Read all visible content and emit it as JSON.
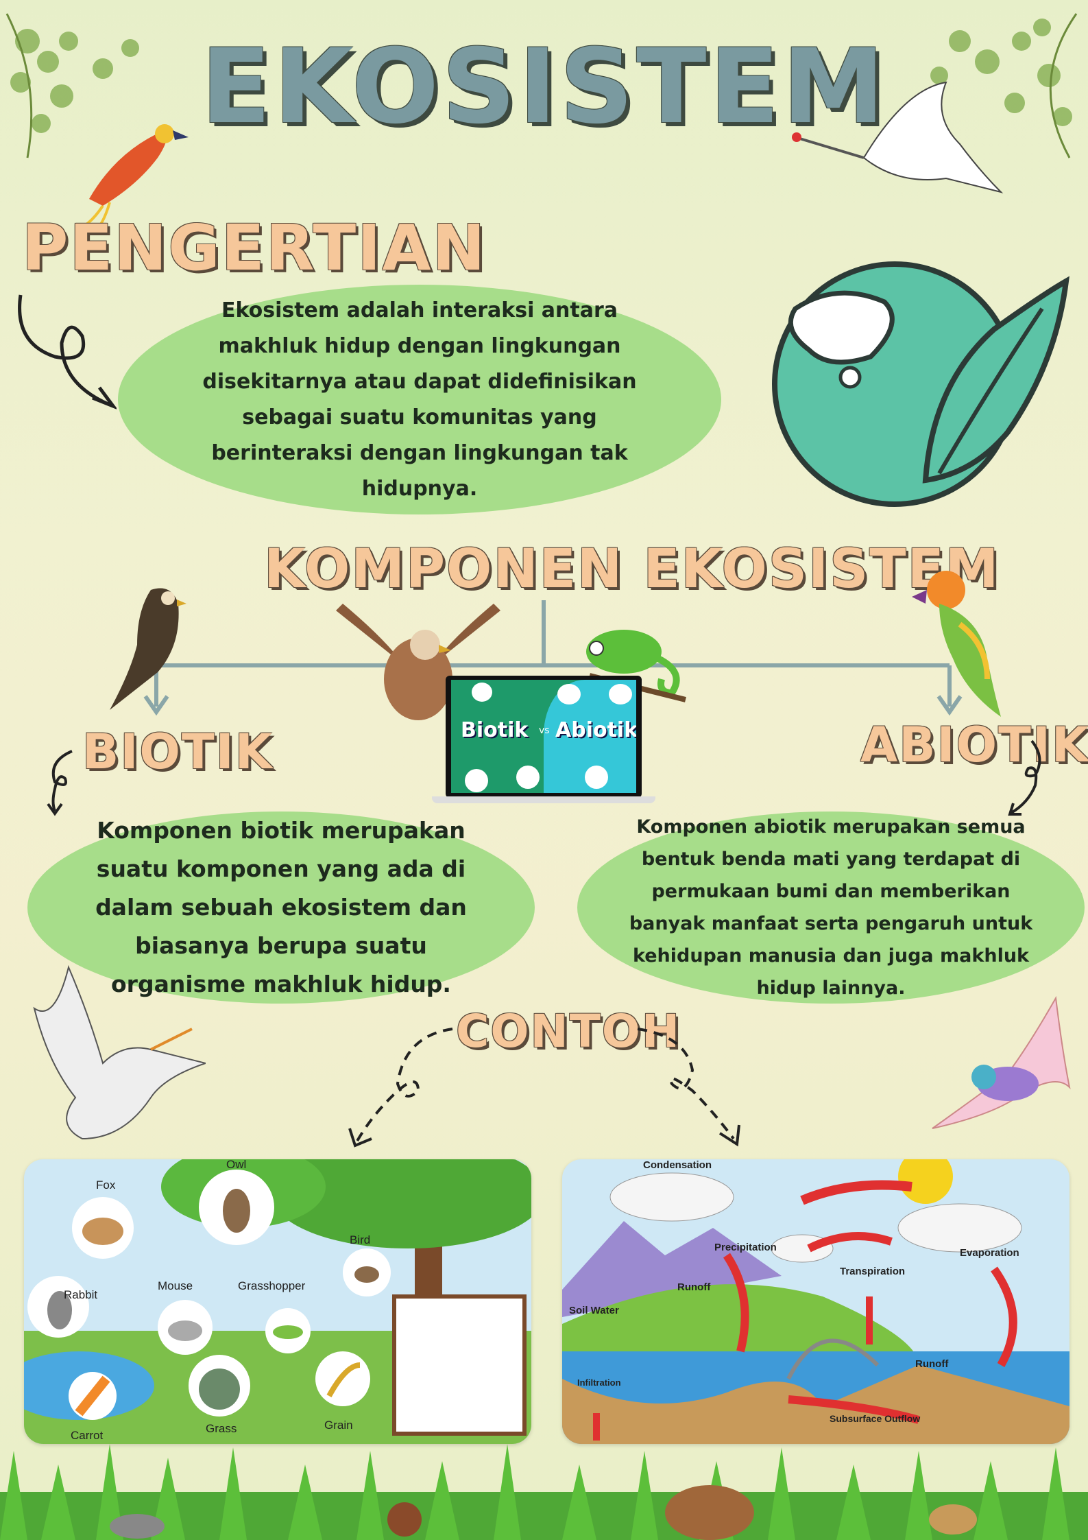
{
  "title": "EKOSISTEM",
  "pengertian": {
    "heading": "PENGERTIAN",
    "text": "Ekosistem adalah interaksi antara makhluk hidup dengan lingkungan disekitarnya atau dapat didefinisikan sebagai suatu komunitas yang berinteraksi dengan lingkungan tak hidupnya."
  },
  "komponen": {
    "heading": "KOMPONEN EKOSISTEM",
    "center_image": {
      "left": "Biotik",
      "vs": "vs",
      "right": "Abiotik"
    },
    "biotik": {
      "heading": "BIOTIK",
      "text": "Komponen biotik merupakan suatu komponen yang ada di dalam sebuah ekosistem dan biasanya berupa suatu organisme makhluk hidup."
    },
    "abiotik": {
      "heading": "ABIOTIK",
      "text": "Komponen abiotik merupakan semua bentuk benda mati yang terdapat di permukaan bumi dan memberikan banyak manfaat serta pengaruh untuk kehidupan manusia dan juga makhluk hidup lainnya."
    }
  },
  "contoh": {
    "heading": "CONTOH",
    "foodweb_labels": {
      "owl": "Owl",
      "fox": "Fox",
      "bird": "Bird",
      "rabbit": "Rabbit",
      "mouse": "Mouse",
      "grasshopper": "Grasshopper",
      "grass": "Grass",
      "grain": "Grain",
      "carrot": "Carrot"
    },
    "watercycle_labels": {
      "condensation": "Condensation",
      "precipitation": "Precipitation",
      "evaporation": "Evaporation",
      "transpiration": "Transpiration",
      "runoff1": "Runoff",
      "runoff2": "Runoff",
      "soil_water": "Soil Water",
      "infiltration": "Infiltration",
      "subsurface": "Subsurface Outflow"
    }
  },
  "colors": {
    "title": "#7a9aa0",
    "heading": "#f6c79a",
    "blob": "#a7dd8a",
    "globe": "#5cc3a6",
    "connector": "#8aa6a8"
  }
}
